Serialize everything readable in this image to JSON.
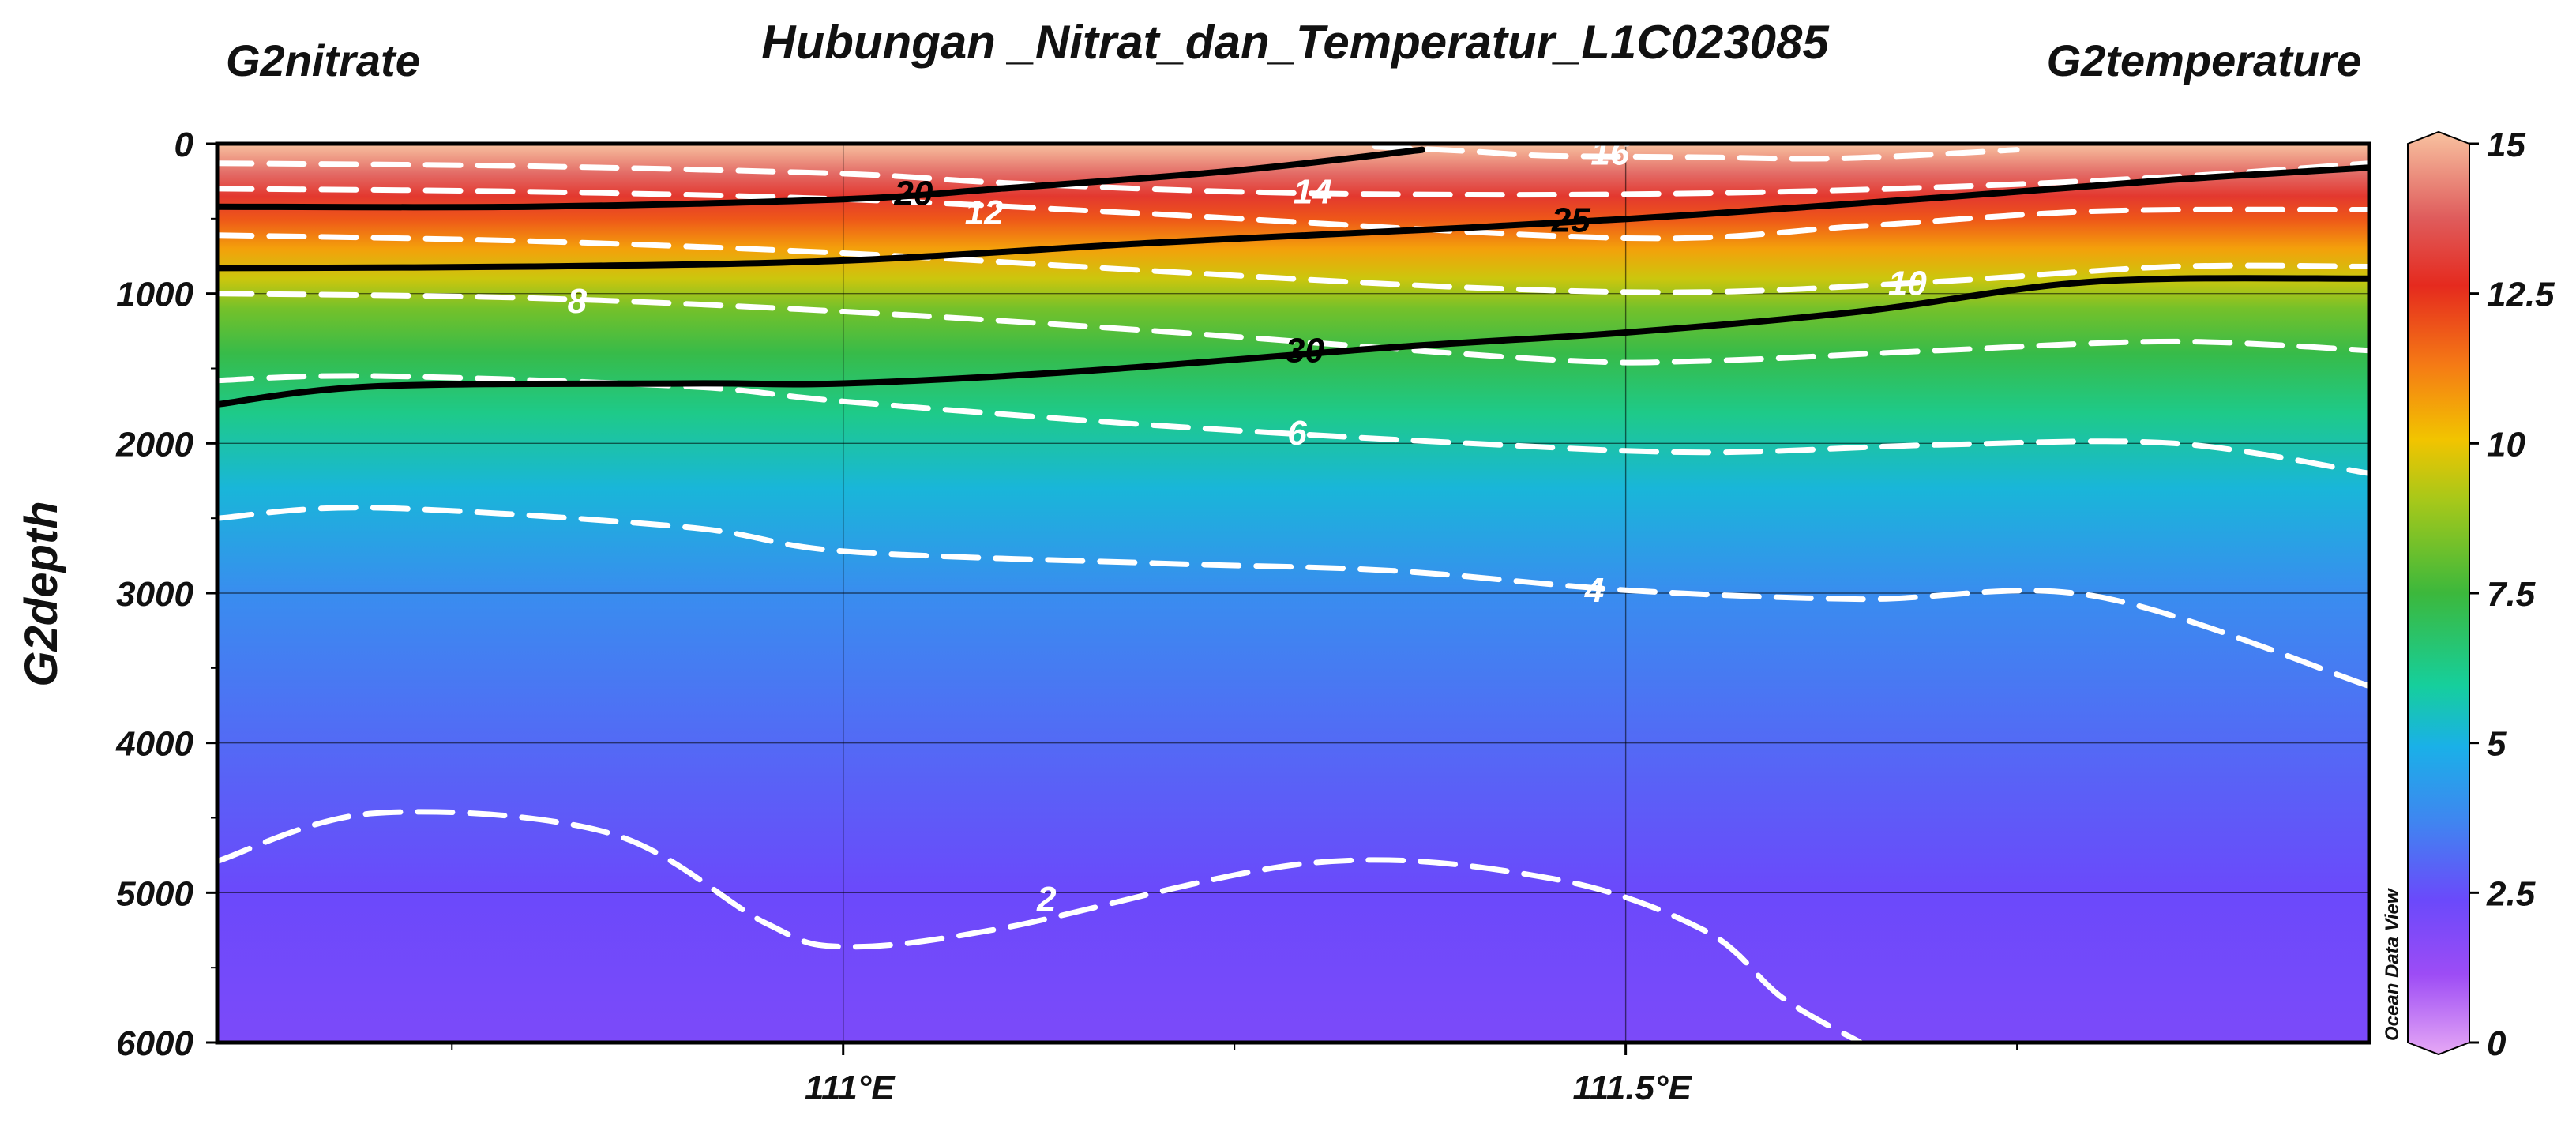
{
  "chart_data": {
    "type": "heatmap",
    "title": "Hubungan _Nitrat_dan_Temperatur_L1C023085",
    "left_variable_label": "G2nitrate",
    "right_variable_label": "G2temperature",
    "ylabel": "G2depth",
    "xlabel": "",
    "x_axis": {
      "range": [
        110.6,
        111.975
      ],
      "ticks": [
        {
          "value": 111.0,
          "label": "111°E"
        },
        {
          "value": 111.5,
          "label": "111.5°E"
        }
      ]
    },
    "y_axis": {
      "range": [
        0,
        6000
      ],
      "reversed": true,
      "ticks": [
        0,
        1000,
        2000,
        3000,
        4000,
        5000,
        6000
      ]
    },
    "colorbar": {
      "variable": "G2temperature",
      "range": [
        0,
        15
      ],
      "ticks": [
        "0",
        "2.5",
        "5",
        "7.5",
        "10",
        "12.5",
        "15"
      ],
      "stops": [
        {
          "value": 0,
          "color": "#e6a8f5"
        },
        {
          "value": 1.3,
          "color": "#9d4cf5"
        },
        {
          "value": 2.5,
          "color": "#6b49fb"
        },
        {
          "value": 3.8,
          "color": "#3f86f0"
        },
        {
          "value": 5,
          "color": "#1ab0e8"
        },
        {
          "value": 6,
          "color": "#16cf9c"
        },
        {
          "value": 7.5,
          "color": "#3cb83c"
        },
        {
          "value": 9,
          "color": "#a6c81a"
        },
        {
          "value": 10,
          "color": "#f2c400"
        },
        {
          "value": 11.2,
          "color": "#f57b15"
        },
        {
          "value": 12.5,
          "color": "#e52a1e"
        },
        {
          "value": 13.6,
          "color": "#df5c5c"
        },
        {
          "value": 15,
          "color": "#f8c2a0"
        }
      ]
    },
    "temperature_profile": [
      {
        "depth": 0,
        "value": 15
      },
      {
        "depth": 200,
        "value": 13.8
      },
      {
        "depth": 350,
        "value": 12.8
      },
      {
        "depth": 500,
        "value": 11.8
      },
      {
        "depth": 700,
        "value": 10.6
      },
      {
        "depth": 900,
        "value": 9.5
      },
      {
        "depth": 1100,
        "value": 8.3
      },
      {
        "depth": 1400,
        "value": 7.3
      },
      {
        "depth": 1800,
        "value": 6.3
      },
      {
        "depth": 2300,
        "value": 5.2
      },
      {
        "depth": 3000,
        "value": 4.0
      },
      {
        "depth": 4000,
        "value": 3.2
      },
      {
        "depth": 5000,
        "value": 2.5
      },
      {
        "depth": 6000,
        "value": 2.1
      }
    ],
    "temperature_contours": [
      {
        "label": "16",
        "label_at": [
          111.49,
          60
        ],
        "points": [
          [
            111.34,
            20
          ],
          [
            111.4,
            50
          ],
          [
            111.45,
            80
          ],
          [
            111.55,
            90
          ],
          [
            111.62,
            100
          ],
          [
            111.68,
            80
          ],
          [
            111.75,
            40
          ]
        ]
      },
      {
        "label": "14",
        "label_at": [
          111.3,
          320
        ],
        "points": [
          [
            110.6,
            130
          ],
          [
            110.8,
            150
          ],
          [
            111.0,
            200
          ],
          [
            111.1,
            260
          ],
          [
            111.25,
            320
          ],
          [
            111.4,
            340
          ],
          [
            111.55,
            330
          ],
          [
            111.7,
            290
          ],
          [
            111.85,
            220
          ],
          [
            111.975,
            130
          ]
        ]
      },
      {
        "label": "12",
        "label_at": [
          111.09,
          460
        ],
        "points": [
          [
            110.6,
            300
          ],
          [
            110.8,
            320
          ],
          [
            111.0,
            370
          ],
          [
            111.2,
            470
          ],
          [
            111.5,
            630
          ],
          [
            111.65,
            550
          ],
          [
            111.8,
            450
          ],
          [
            111.975,
            440
          ]
        ]
      },
      {
        "label": "10",
        "label_at": [
          111.68,
          930
        ],
        "points": [
          [
            110.6,
            610
          ],
          [
            110.8,
            650
          ],
          [
            111.0,
            730
          ],
          [
            111.2,
            850
          ],
          [
            111.4,
            960
          ],
          [
            111.55,
            990
          ],
          [
            111.7,
            920
          ],
          [
            111.85,
            820
          ],
          [
            111.975,
            820
          ]
        ]
      },
      {
        "label": "8",
        "label_at": [
          110.83,
          1050
        ],
        "points": [
          [
            110.6,
            1000
          ],
          [
            110.8,
            1030
          ],
          [
            111.0,
            1120
          ],
          [
            111.2,
            1250
          ],
          [
            111.45,
            1440
          ],
          [
            111.55,
            1450
          ],
          [
            111.7,
            1380
          ],
          [
            111.85,
            1320
          ],
          [
            111.975,
            1380
          ]
        ]
      },
      {
        "label": "6",
        "label_at": [
          111.29,
          1930
        ],
        "points": [
          [
            110.6,
            1580
          ],
          [
            110.7,
            1550
          ],
          [
            110.9,
            1620
          ],
          [
            111.0,
            1720
          ],
          [
            111.2,
            1880
          ],
          [
            111.4,
            2000
          ],
          [
            111.55,
            2060
          ],
          [
            111.7,
            2010
          ],
          [
            111.85,
            2000
          ],
          [
            111.975,
            2200
          ]
        ]
      },
      {
        "label": "4",
        "label_at": [
          111.48,
          2980
        ],
        "points": [
          [
            110.6,
            2500
          ],
          [
            110.7,
            2430
          ],
          [
            110.9,
            2560
          ],
          [
            111.0,
            2720
          ],
          [
            111.2,
            2800
          ],
          [
            111.35,
            2850
          ],
          [
            111.5,
            2980
          ],
          [
            111.65,
            3040
          ],
          [
            111.8,
            3020
          ],
          [
            111.975,
            3620
          ]
        ]
      },
      {
        "label": "2",
        "label_at": [
          111.13,
          5040
        ],
        "points": [
          [
            110.6,
            4790
          ],
          [
            110.7,
            4470
          ],
          [
            110.85,
            4600
          ],
          [
            110.95,
            5200
          ],
          [
            111.0,
            5360
          ],
          [
            111.1,
            5240
          ],
          [
            111.3,
            4800
          ],
          [
            111.45,
            4900
          ],
          [
            111.55,
            5250
          ],
          [
            111.6,
            5700
          ],
          [
            111.65,
            6000
          ]
        ]
      }
    ],
    "nitrate_contours": [
      {
        "label": "20",
        "label_at": [
          111.045,
          330
        ],
        "points": [
          [
            110.6,
            420
          ],
          [
            110.8,
            420
          ],
          [
            111.0,
            370
          ],
          [
            111.1,
            300
          ],
          [
            111.25,
            180
          ],
          [
            111.37,
            40
          ]
        ]
      },
      {
        "label": "25",
        "label_at": [
          111.465,
          510
        ],
        "points": [
          [
            110.6,
            830
          ],
          [
            110.8,
            820
          ],
          [
            111.0,
            780
          ],
          [
            111.2,
            660
          ],
          [
            111.4,
            560
          ],
          [
            111.55,
            470
          ],
          [
            111.7,
            360
          ],
          [
            111.85,
            240
          ],
          [
            111.975,
            160
          ]
        ]
      },
      {
        "label": "30",
        "label_at": [
          111.295,
          1380
        ],
        "points": [
          [
            110.6,
            1740
          ],
          [
            110.7,
            1620
          ],
          [
            110.9,
            1600
          ],
          [
            111.0,
            1600
          ],
          [
            111.15,
            1520
          ],
          [
            111.35,
            1360
          ],
          [
            111.5,
            1260
          ],
          [
            111.65,
            1120
          ],
          [
            111.8,
            920
          ],
          [
            111.975,
            900
          ]
        ]
      }
    ],
    "grid": true,
    "watermark": "Ocean Data View"
  }
}
